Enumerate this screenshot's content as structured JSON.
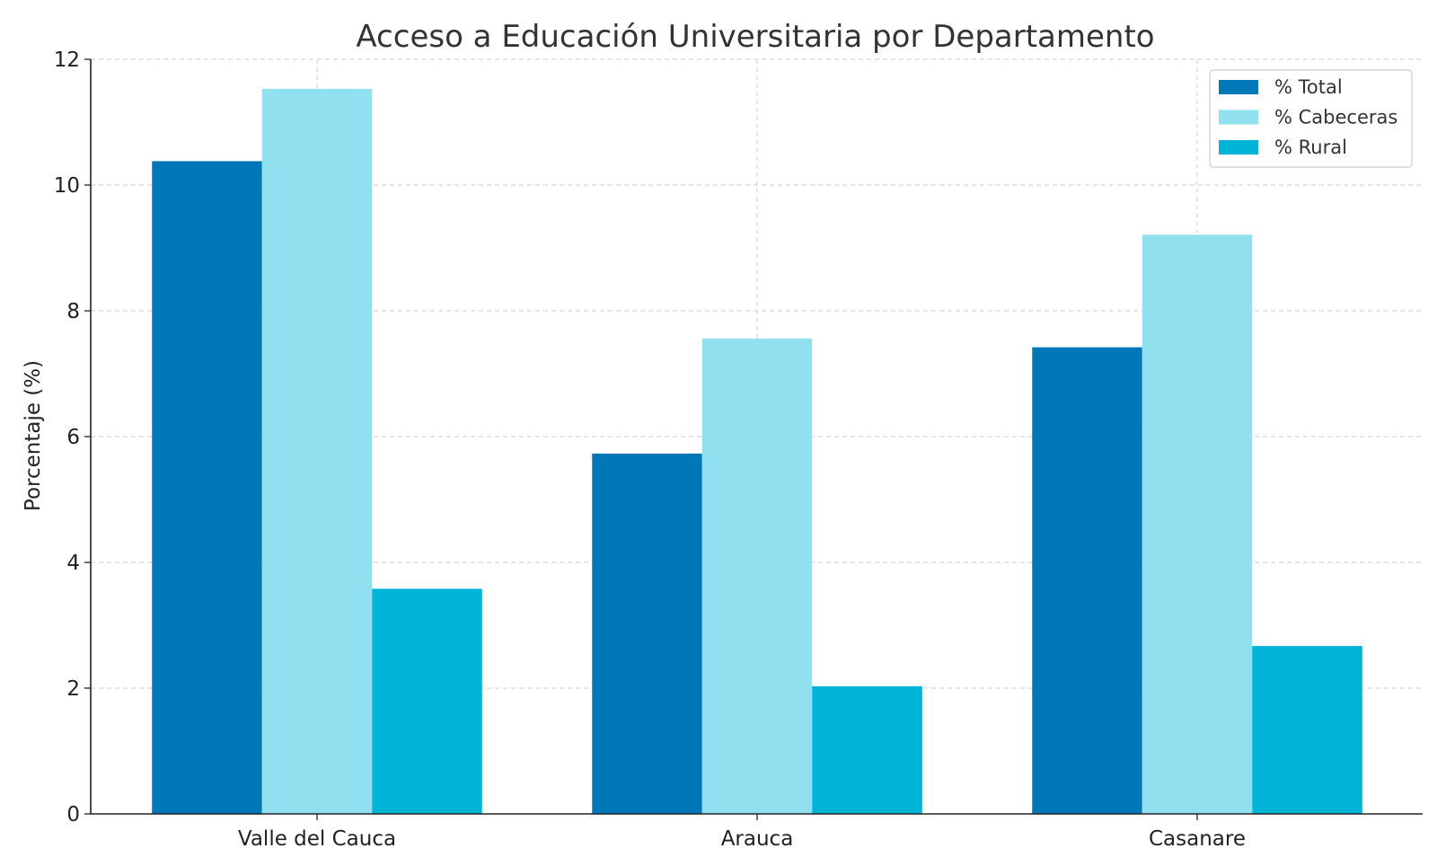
{
  "chart_data": {
    "type": "bar",
    "title": "Acceso a Educación Universitaria por Departamento",
    "xlabel": "",
    "ylabel": "Porcentaje (%)",
    "ylim": [
      0,
      12
    ],
    "yticks": [
      "0",
      "2",
      "4",
      "6",
      "8",
      "10",
      "12"
    ],
    "categories": [
      "Valle del Cauca",
      "Arauca",
      "Casanare"
    ],
    "series": [
      {
        "name": "% Total",
        "color": "#0077b6",
        "values": [
          10.38,
          5.73,
          7.42
        ]
      },
      {
        "name": "% Cabeceras",
        "color": "#90e0ef",
        "values": [
          11.53,
          7.56,
          9.21
        ]
      },
      {
        "name": "% Rural",
        "color": "#00b4d8",
        "values": [
          3.58,
          2.03,
          2.67
        ]
      }
    ],
    "grid": true,
    "legend_position": "top-right"
  }
}
